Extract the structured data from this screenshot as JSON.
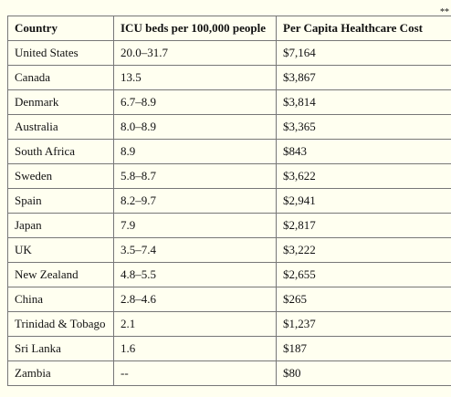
{
  "table": {
    "headers": [
      "Country",
      "ICU beds per 100,000 people",
      "Per Capita Healthcare Cost"
    ],
    "footnote_marker": "**",
    "rows": [
      [
        "United States",
        "20.0–31.7",
        "$7,164"
      ],
      [
        "Canada",
        "13.5",
        "$3,867"
      ],
      [
        "Denmark",
        "6.7–8.9",
        "$3,814"
      ],
      [
        "Australia",
        "8.0–8.9",
        "$3,365"
      ],
      [
        "South Africa",
        "8.9",
        "$843"
      ],
      [
        "Sweden",
        "5.8–8.7",
        "$3,622"
      ],
      [
        "Spain",
        "8.2–9.7",
        "$2,941"
      ],
      [
        "Japan",
        "7.9",
        "$2,817"
      ],
      [
        "UK",
        "3.5–7.4",
        "$3,222"
      ],
      [
        "New Zealand",
        "4.8–5.5",
        "$2,655"
      ],
      [
        "China",
        "2.8–4.6",
        "$265"
      ],
      [
        "Trinidad & Tobago",
        "2.1",
        "$1,237"
      ],
      [
        "Sri Lanka",
        "1.6",
        "$187"
      ],
      [
        "Zambia",
        "--",
        "$80"
      ]
    ]
  },
  "colors": {
    "background": "#fffff0",
    "border": "#777777",
    "text": "#111111"
  }
}
